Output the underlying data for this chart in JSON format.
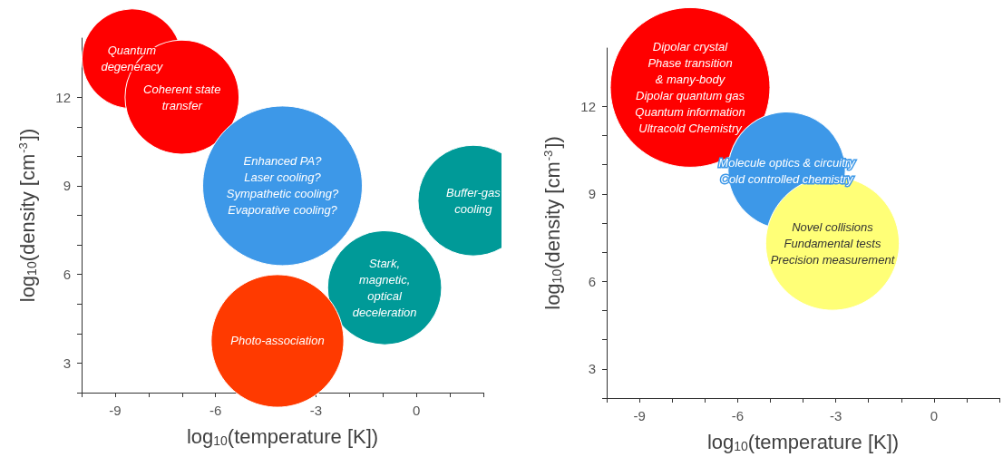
{
  "chart_data": [
    {
      "type": "bubble",
      "xlabel": "log$_{10}$(temperature [K])",
      "ylabel": "log$_{10}$(density [cm$^{-3}$])",
      "xlim": [
        -10,
        2
      ],
      "ylim": [
        2,
        14
      ],
      "xticks": [
        {
          "value": -10,
          "label": null
        },
        -9,
        {
          "value": -8,
          "label": null
        },
        {
          "value": -7,
          "label": null
        },
        -6,
        {
          "value": -5,
          "label": null
        },
        {
          "value": -4,
          "label": null
        },
        -3,
        {
          "value": -2,
          "label": null
        },
        {
          "value": -1,
          "label": null
        },
        0,
        {
          "value": 1,
          "label": null
        },
        {
          "value": 2,
          "label": null
        }
      ],
      "yticks": [
        {
          "value": 2,
          "label": null
        },
        3,
        {
          "value": 4,
          "label": null
        },
        {
          "value": 5,
          "label": null
        },
        6,
        {
          "value": 7,
          "label": null
        },
        {
          "value": 8,
          "label": null
        },
        9,
        {
          "value": 10,
          "label": null
        },
        {
          "value": 11,
          "label": null
        },
        12
      ],
      "grid": false,
      "legend": false,
      "series": [
        {
          "name": "Quantum\ndegeneracy",
          "color": "#ff0000",
          "x": [
            -8.5
          ],
          "values": [
            13.3
          ],
          "sizes": [
            0.39
          ]
        },
        {
          "name": "Coherent state\ntransfer",
          "color": "#ff0000",
          "x": [
            -7.0
          ],
          "values": [
            12.0
          ],
          "sizes": [
            0.51
          ]
        },
        {
          "name": "Enhanced PA?\nLaser cooling?\nSympathetic cooling?\nEvaporative cooling?",
          "color": "#3d98e8",
          "x": [
            -4.0
          ],
          "values": [
            9.0
          ],
          "sizes": [
            1
          ]
        },
        {
          "name": "Buffer-gas\ncooling",
          "color": "#009a98",
          "x": [
            1.7
          ],
          "values": [
            8.5
          ],
          "sizes": [
            0.48
          ]
        },
        {
          "name": "Stark,\nmagnetic,\noptical\ndeceleration",
          "color": "#009a98",
          "x": [
            -0.95
          ],
          "values": [
            5.55
          ],
          "sizes": [
            0.51
          ]
        },
        {
          "name": "Photo-association",
          "color": "#ff3a00",
          "x": [
            -4.15
          ],
          "values": [
            3.75
          ],
          "sizes": [
            0.69
          ]
        }
      ]
    },
    {
      "type": "bubble",
      "xlabel": "log$_{10}$(temperature [K])",
      "ylabel": "log$_{10}$(density [cm$^{-3}$])",
      "xlim": [
        -10,
        2
      ],
      "ylim": [
        2,
        14
      ],
      "xticks": [
        {
          "value": -10,
          "label": null
        },
        -9,
        {
          "value": -8,
          "label": null
        },
        {
          "value": -7,
          "label": null
        },
        -6,
        {
          "value": -5,
          "label": null
        },
        {
          "value": -4,
          "label": null
        },
        -3,
        {
          "value": -2,
          "label": null
        },
        {
          "value": -1,
          "label": null
        },
        0,
        {
          "value": 1,
          "label": null
        },
        {
          "value": 2,
          "label": null
        }
      ],
      "yticks": [
        {
          "value": 2,
          "label": null
        },
        3,
        {
          "value": 4,
          "label": null
        },
        {
          "value": 5,
          "label": null
        },
        6,
        {
          "value": 7,
          "label": null
        },
        {
          "value": 8,
          "label": null
        },
        9,
        {
          "value": 10,
          "label": null
        },
        {
          "value": 11,
          "label": null
        },
        12
      ],
      "grid": false,
      "legend": false,
      "series": [
        {
          "name": "Dipolar crystal\nPhase transition\n& many-body\nDipolar quantum gas\nQuantum information\nUltracold Chemistry",
          "color": "#ff0000",
          "x": [
            -7.45
          ],
          "values": [
            12.65
          ],
          "sizes": [
            1
          ]
        },
        {
          "name": "Molecule optics & circuitry\nCold controlled chemistry",
          "color": "#3d98e8",
          "x": [
            -4.5
          ],
          "values": [
            9.8
          ],
          "sizes": [
            0.54
          ]
        },
        {
          "name": "Novel collisions\nFundamental tests\nPrecision measurement",
          "color": "#ffff77",
          "x": [
            -3.1
          ],
          "values": [
            7.3
          ],
          "sizes": [
            0.7
          ]
        }
      ]
    }
  ]
}
